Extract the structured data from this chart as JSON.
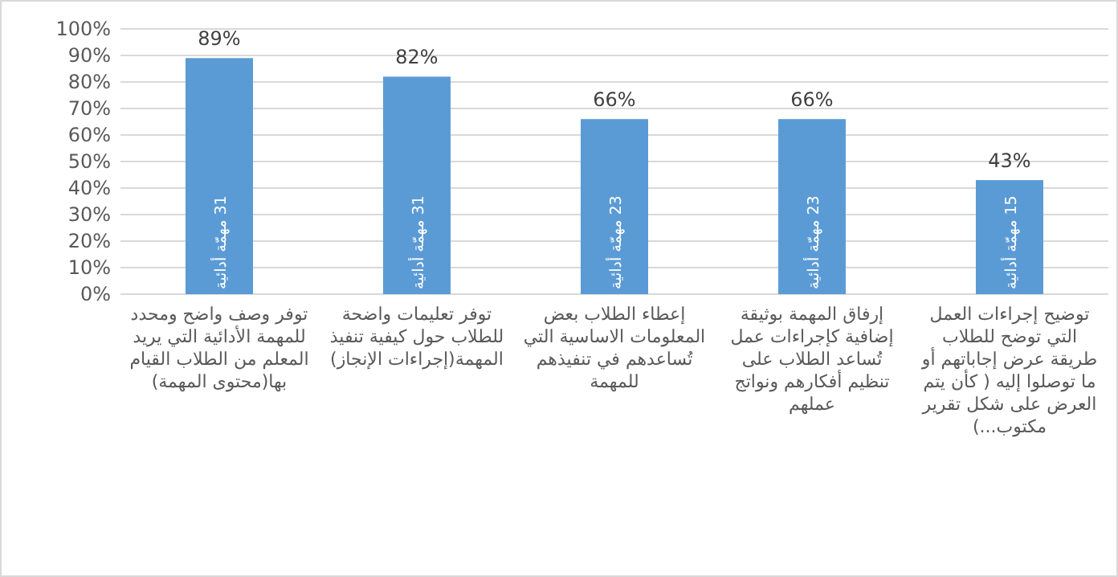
{
  "chart_data": {
    "type": "bar",
    "categories": [
      "توفر وصف واضح ومحدد للمهمة الأدائية التي يريد المعلم من الطلاب القيام بها(محتوى المهمة)",
      "توفر تعليمات واضحة للطلاب حول كيفية تنفيذ المهمة(إجراءات الإنجاز)",
      "إعطاء الطلاب بعض المعلومات الاساسية التي تُساعدهم في تنفيذهم للمهمة",
      "إرفاق المهمة بوثيقة إضافية كإجراءات عمل تُساعد الطلاب على تنظيم أفكارهم ونواتج عملهم",
      "توضيح إجراءات العمل التي توضح للطلاب طريقة عرض إجاباتهم أو ما توصلوا إليه ( كأن يتم العرض على شكل تقرير مكتوب...)"
    ],
    "values": [
      89,
      82,
      66,
      66,
      43
    ],
    "value_labels": [
      "89%",
      "82%",
      "66%",
      "66%",
      "43%"
    ],
    "color": "#5b9bd5",
    "ylim": [
      0,
      100
    ],
    "yticks": [
      {
        "value": 0,
        "label": "0%"
      },
      {
        "value": 10,
        "label": "10%"
      },
      {
        "value": 20,
        "label": "20%"
      },
      {
        "value": 30,
        "label": "30%"
      },
      {
        "value": 40,
        "label": "40%"
      },
      {
        "value": 50,
        "label": "50%"
      },
      {
        "value": 60,
        "label": "60%"
      },
      {
        "value": 70,
        "label": "70%"
      },
      {
        "value": 80,
        "label": "80%"
      },
      {
        "value": 90,
        "label": "90%"
      },
      {
        "value": 100,
        "label": "100%"
      }
    ],
    "grid": "y",
    "annotations": [
      "31 مهمّة أدائية",
      "31 مهمّة أدائية",
      "23 مهمّة أدائية",
      "23 مهمّة أدائية",
      "15 مهمّة أدائية"
    ]
  }
}
